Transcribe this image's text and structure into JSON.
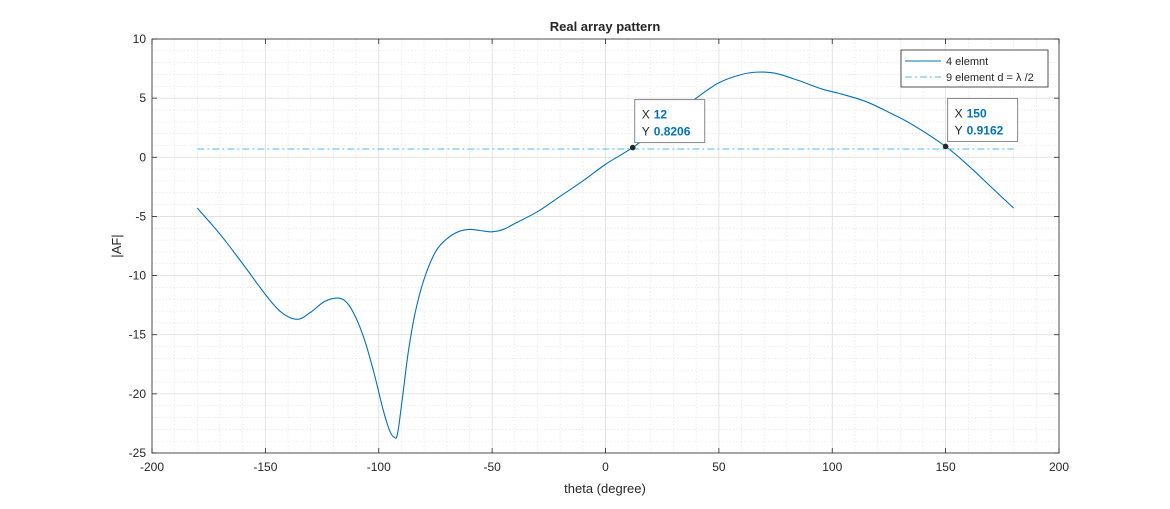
{
  "chart_data": {
    "type": "line",
    "title": "Real array pattern",
    "xlabel": "theta (degree)",
    "ylabel": "|AF|",
    "xlim": [
      -200,
      200
    ],
    "ylim": [
      -25,
      10
    ],
    "xticks": [
      -200,
      -150,
      -100,
      -50,
      0,
      50,
      100,
      150,
      200
    ],
    "yticks": [
      -25,
      -20,
      -15,
      -10,
      -5,
      0,
      5,
      10
    ],
    "xtick_labels": [
      "-200",
      "-150",
      "-100",
      "-50",
      "0",
      "50",
      "100",
      "150",
      "200"
    ],
    "ytick_labels": [
      "-25",
      "-20",
      "-15",
      "-10",
      "-5",
      "0",
      "5",
      "10"
    ],
    "grid": true,
    "minor_grid": true,
    "legend_position": "top-right",
    "series": [
      {
        "name": "4 elemnt",
        "color": "#0072BD",
        "style": "solid",
        "x": [
          -180,
          -170,
          -160,
          -150,
          -143,
          -136,
          -130,
          -124,
          -118,
          -114,
          -110,
          -106,
          -102,
          -98,
          -95,
          -93,
          -92,
          -91,
          -89,
          -87,
          -84,
          -80,
          -75,
          -70,
          -65,
          -60,
          -55,
          -50,
          -45,
          -40,
          -30,
          -20,
          -10,
          0,
          12,
          20,
          30,
          40,
          50,
          60,
          67,
          75,
          85,
          95,
          105,
          115,
          125,
          135,
          150,
          160,
          170,
          180
        ],
        "values": [
          -4.3,
          -6.5,
          -9.0,
          -11.6,
          -13.1,
          -13.7,
          -13.1,
          -12.2,
          -11.9,
          -12.3,
          -13.6,
          -15.6,
          -18.3,
          -21.4,
          -23.2,
          -23.7,
          -23.6,
          -22.5,
          -19.5,
          -16.5,
          -13.2,
          -10.3,
          -8.0,
          -6.9,
          -6.3,
          -6.1,
          -6.2,
          -6.3,
          -6.1,
          -5.6,
          -4.6,
          -3.3,
          -2.0,
          -0.6,
          0.8206,
          2.0,
          3.5,
          5.0,
          6.3,
          7.0,
          7.2,
          7.1,
          6.5,
          5.8,
          5.3,
          4.7,
          3.8,
          2.8,
          0.9162,
          -0.7,
          -2.5,
          -4.3
        ]
      },
      {
        "name": "9 element d = λ /2",
        "color": "#4DBEEE",
        "style": "dash-dot",
        "x": [
          -180,
          180
        ],
        "values": [
          0.7,
          0.7
        ]
      }
    ],
    "annotations": [
      {
        "x": 12,
        "y": 0.8206,
        "x_label": "X",
        "y_label": "Y",
        "x_text": "12",
        "y_text": "0.8206"
      },
      {
        "x": 150,
        "y": 0.9162,
        "x_label": "X",
        "y_label": "Y",
        "x_text": "150",
        "y_text": "0.9162"
      }
    ]
  }
}
